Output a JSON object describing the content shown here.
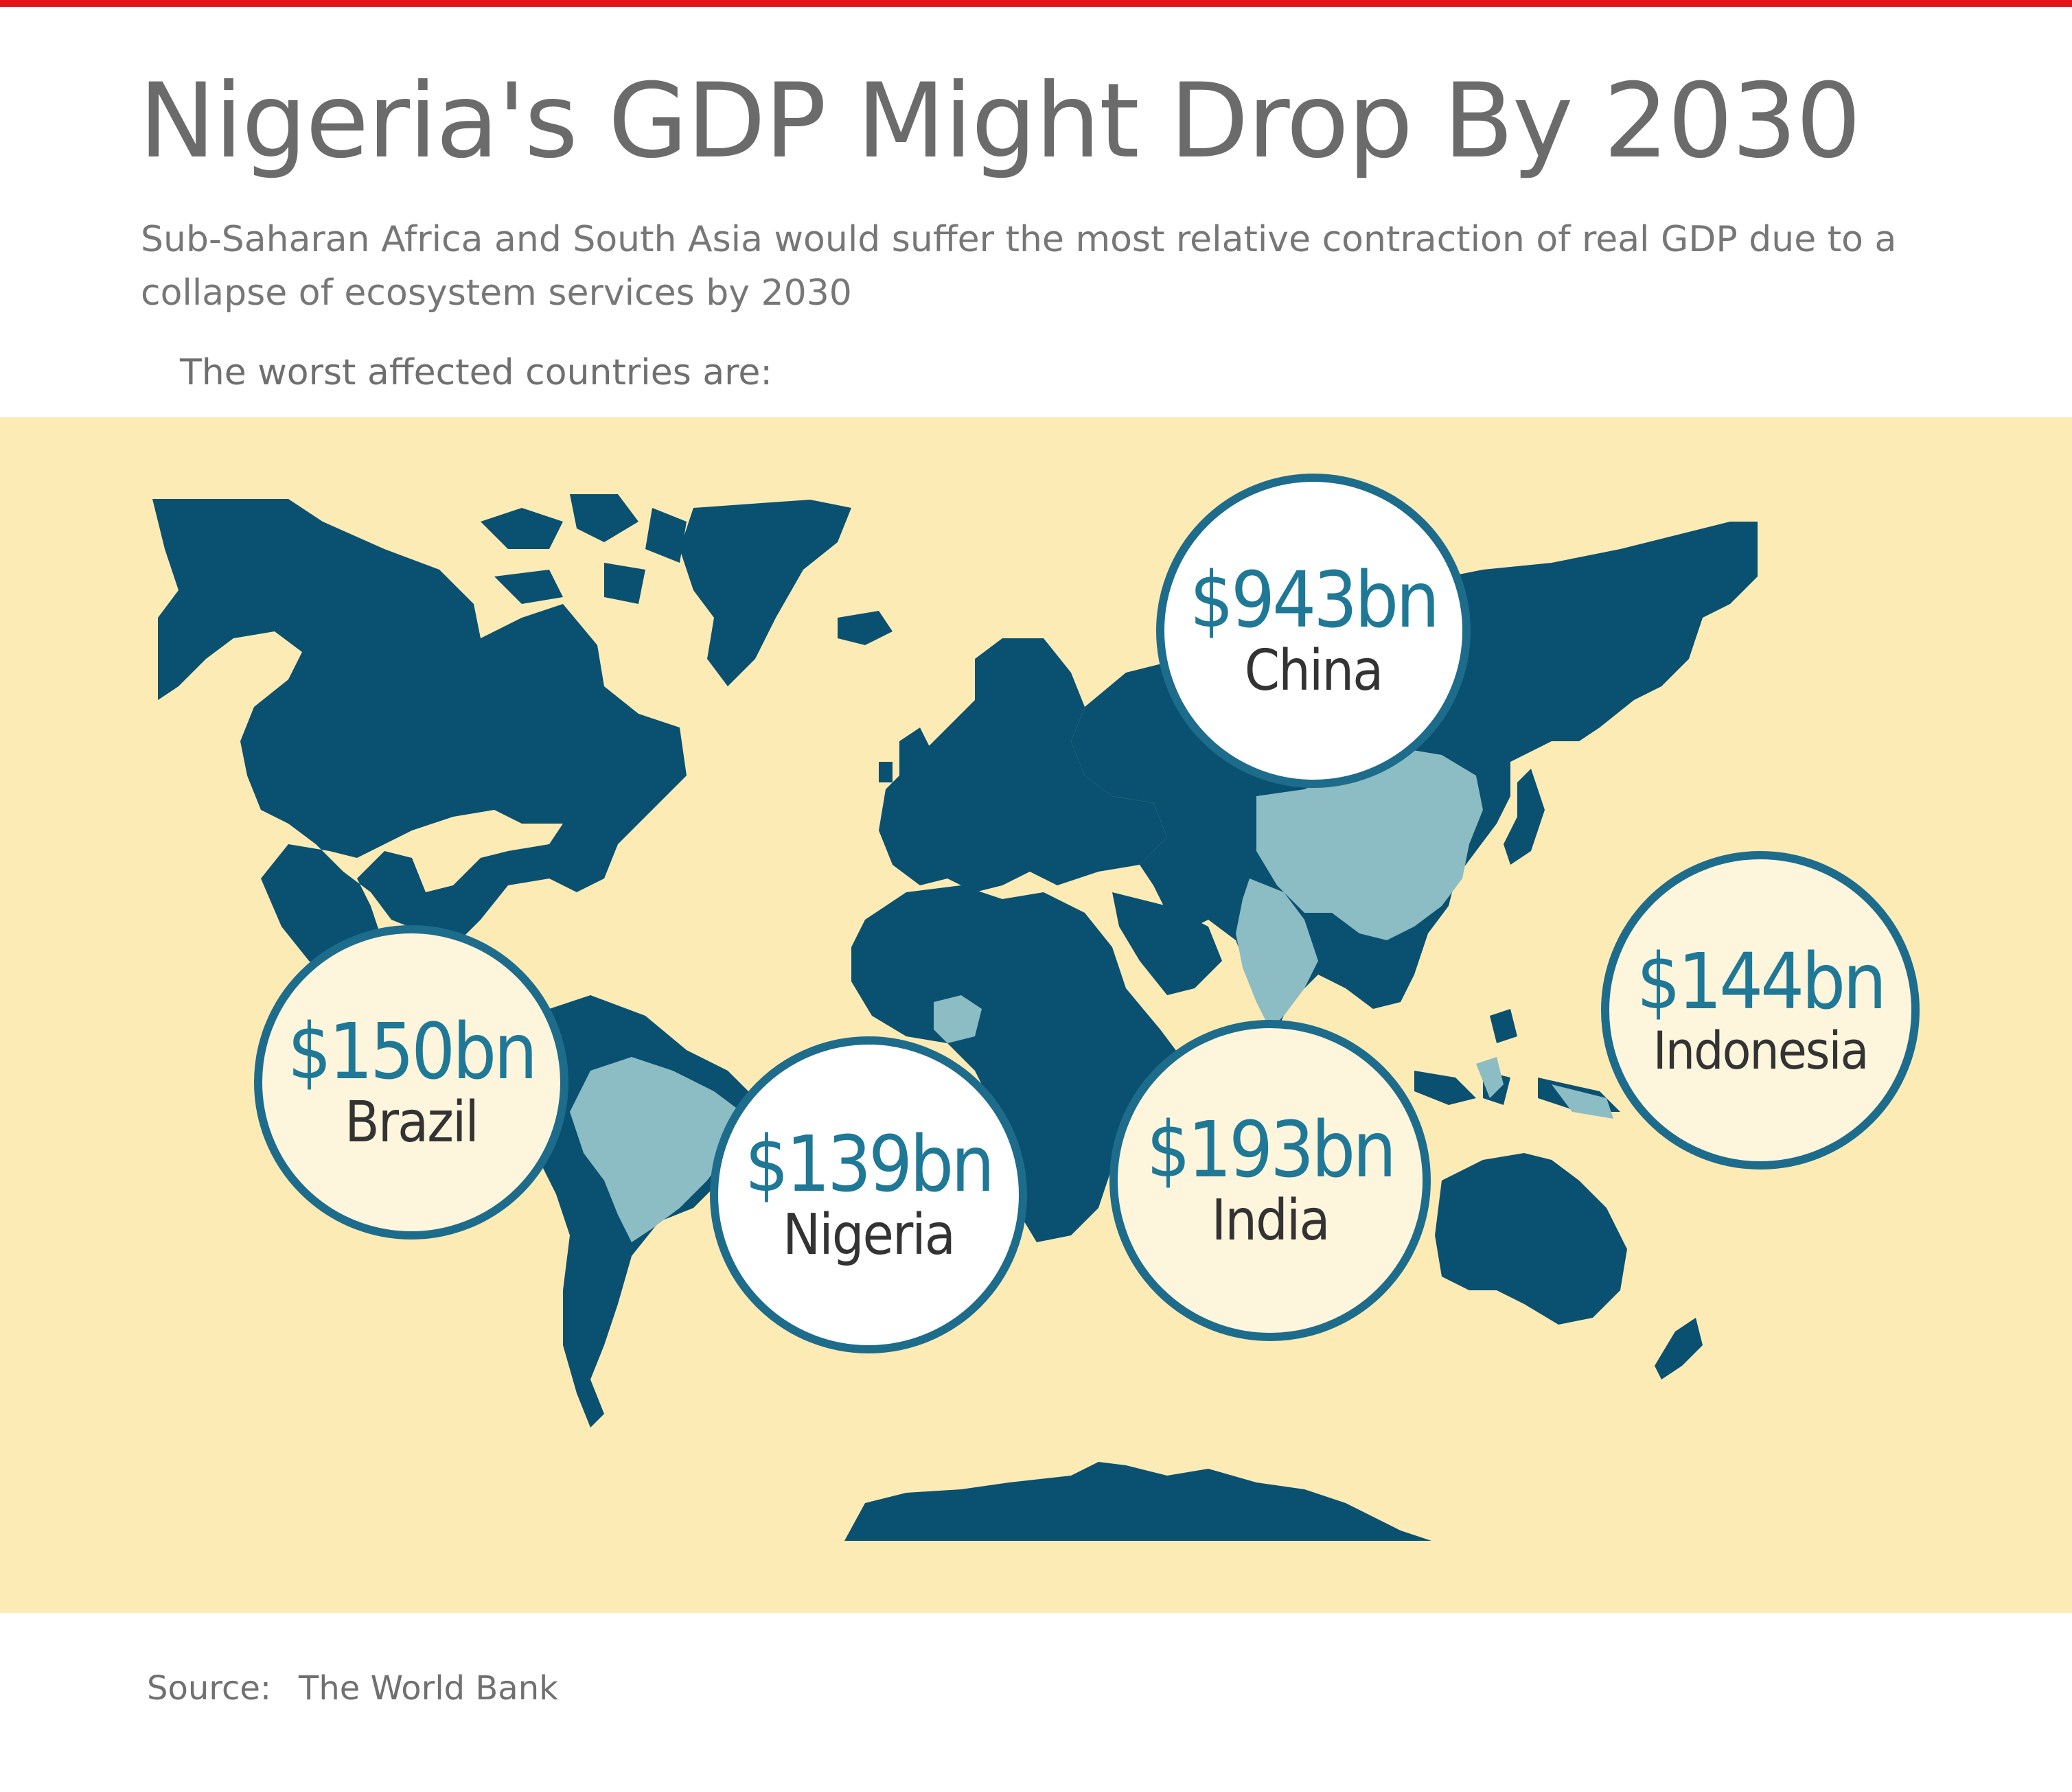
{
  "header": {
    "title": "Nigeria's GDP Might Drop By 2030",
    "subtitle": "Sub-Saharan Africa and South Asia would suffer the most relative contraction of real GDP due to a collapse of ecosystem services by 2030",
    "lead": "The worst affected countries are:"
  },
  "colors": {
    "accent_bar": "#e2151b",
    "ocean": "#fdebb5",
    "land": "#0a5070",
    "highlight_land": "#8cbcc4",
    "bubble_border": "#1d6c8c",
    "amount_text": "#1f7896"
  },
  "bubbles": [
    {
      "amount": "$943bn",
      "country": "China"
    },
    {
      "amount": "$150bn",
      "country": "Brazil"
    },
    {
      "amount": "$139bn",
      "country": "Nigeria"
    },
    {
      "amount": "$193bn",
      "country": "India"
    },
    {
      "amount": "$144bn",
      "country": "Indonesia"
    }
  ],
  "source": {
    "label": "Source:",
    "value": "The World Bank"
  }
}
